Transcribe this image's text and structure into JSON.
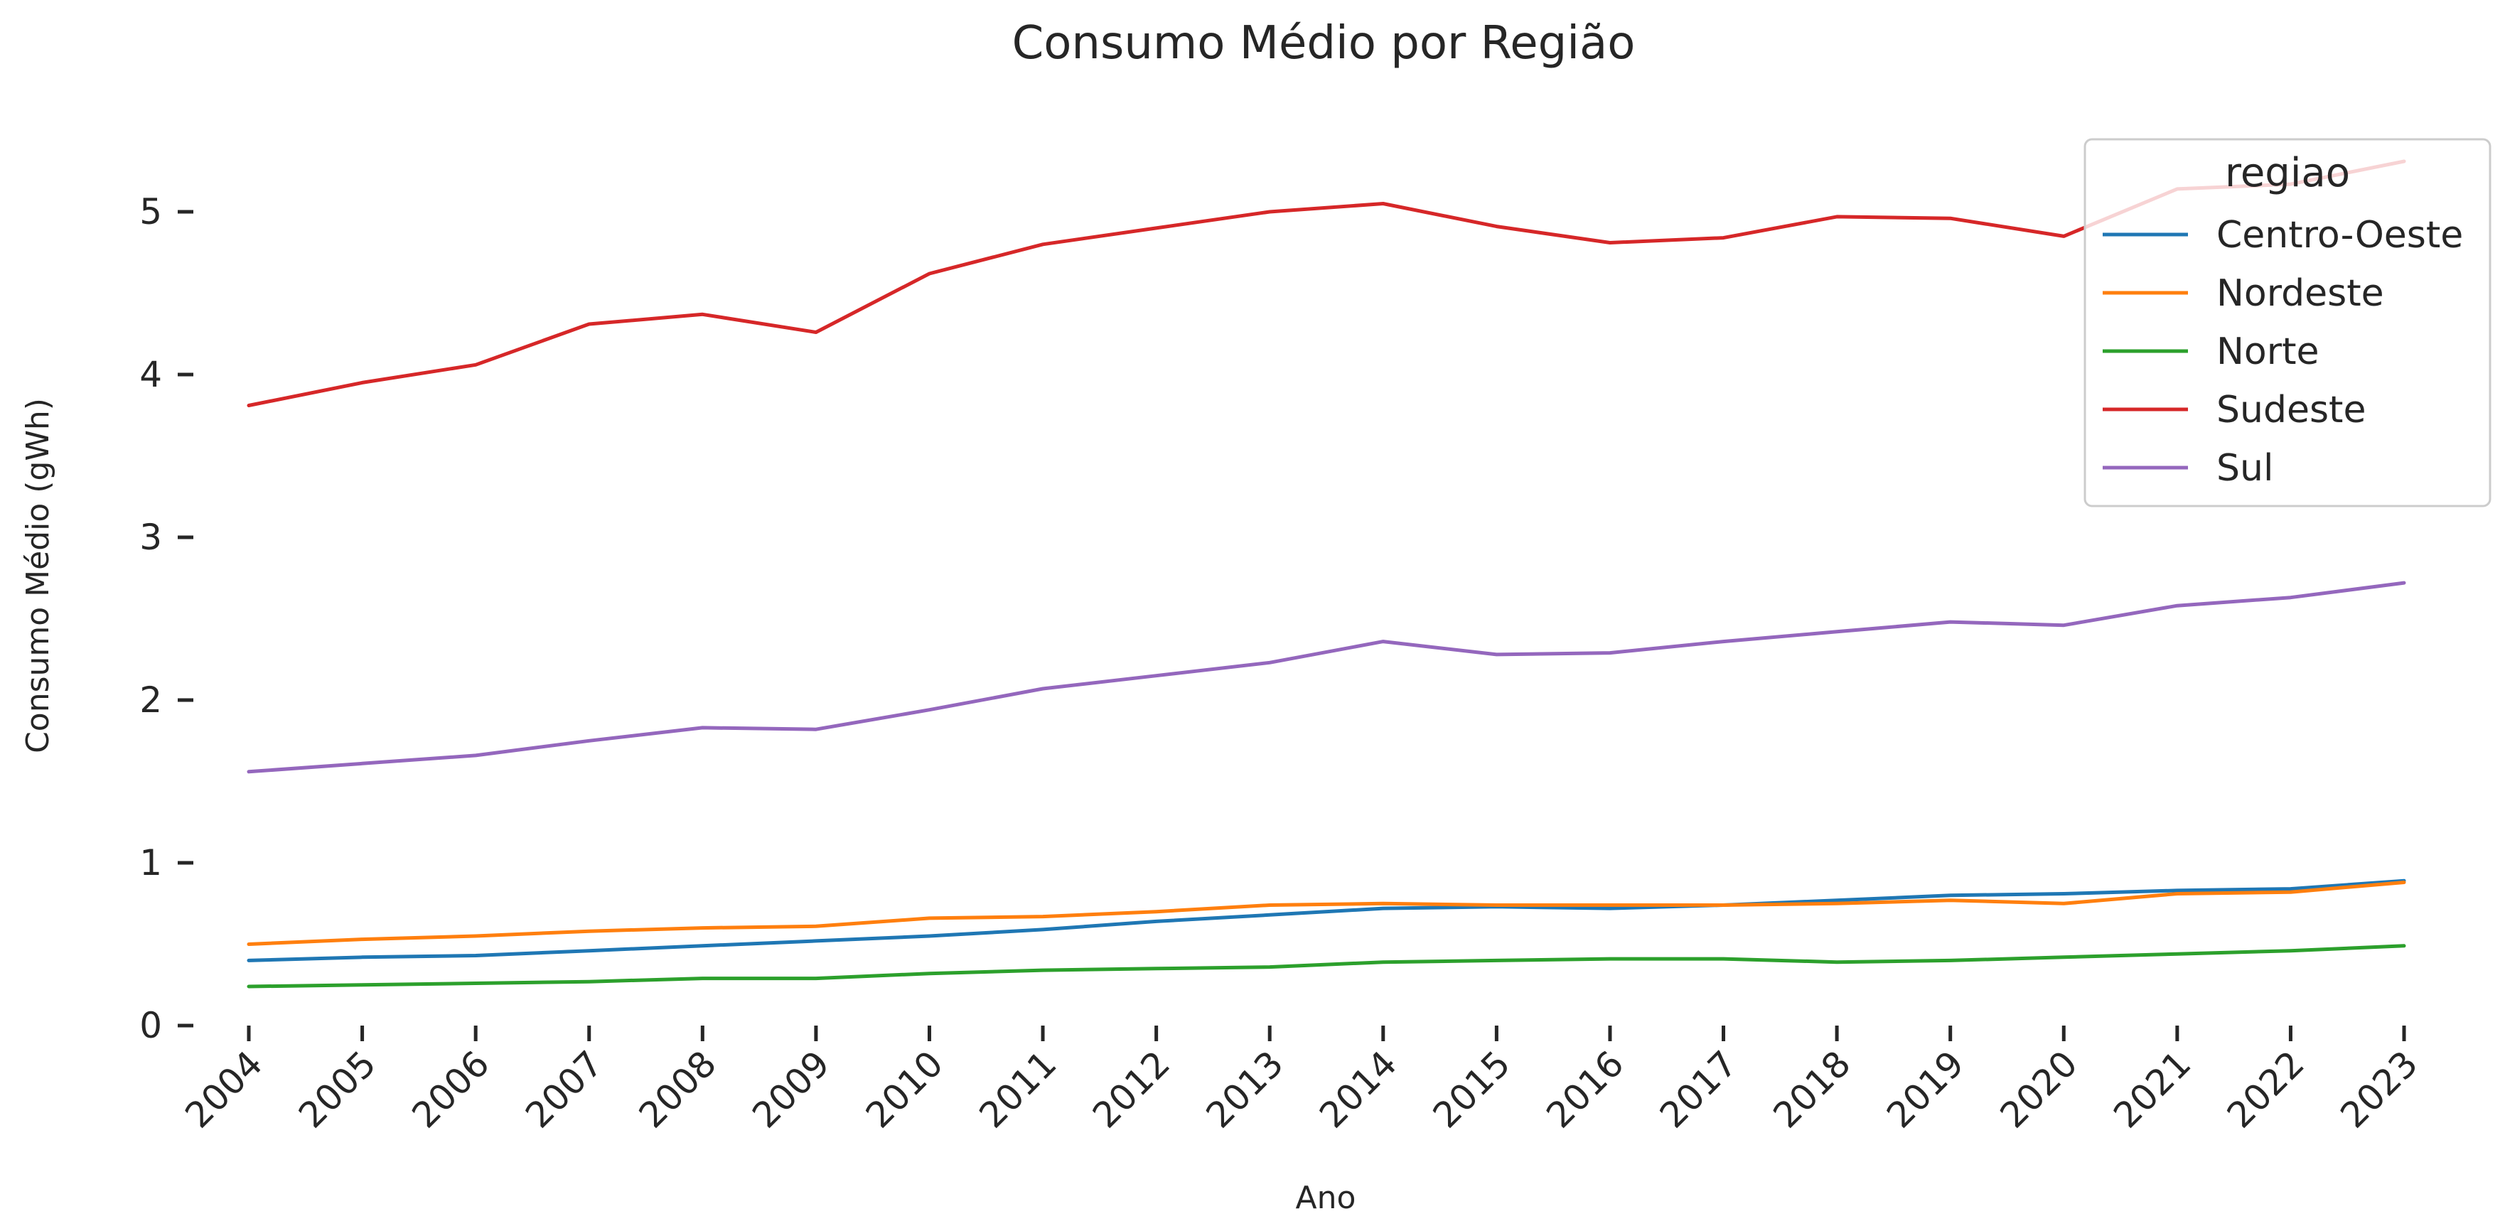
{
  "chart_data": {
    "type": "line",
    "title": "Consumo Médio por Região",
    "xlabel": "Ano",
    "ylabel": "Consumo Médio (gWh)",
    "x": [
      2004,
      2005,
      2006,
      2007,
      2008,
      2009,
      2010,
      2011,
      2012,
      2013,
      2014,
      2015,
      2016,
      2017,
      2018,
      2019,
      2020,
      2021,
      2022,
      2023
    ],
    "yticks": [
      0,
      1,
      2,
      3,
      4,
      5
    ],
    "ylim": [
      0,
      5.5
    ],
    "grid": false,
    "legend": {
      "title": "regiao",
      "position": "top-right"
    },
    "series": [
      {
        "name": "Centro-Oeste",
        "color": "#1f77b4",
        "values": [
          0.4,
          0.42,
          0.43,
          0.46,
          0.49,
          0.52,
          0.55,
          0.59,
          0.64,
          0.68,
          0.72,
          0.73,
          0.72,
          0.74,
          0.77,
          0.8,
          0.81,
          0.83,
          0.84,
          0.89
        ]
      },
      {
        "name": "Nordeste",
        "color": "#ff7f0e",
        "values": [
          0.5,
          0.53,
          0.55,
          0.58,
          0.6,
          0.61,
          0.66,
          0.67,
          0.7,
          0.74,
          0.75,
          0.74,
          0.74,
          0.74,
          0.75,
          0.77,
          0.75,
          0.81,
          0.82,
          0.88
        ]
      },
      {
        "name": "Norte",
        "color": "#2ca02c",
        "values": [
          0.24,
          0.25,
          0.26,
          0.27,
          0.29,
          0.29,
          0.32,
          0.34,
          0.35,
          0.36,
          0.39,
          0.4,
          0.41,
          0.41,
          0.39,
          0.4,
          0.42,
          0.44,
          0.46,
          0.49
        ]
      },
      {
        "name": "Sudeste",
        "color": "#d62728",
        "values": [
          3.81,
          3.95,
          4.06,
          4.31,
          4.37,
          4.26,
          4.62,
          4.8,
          4.9,
          5.0,
          5.05,
          4.91,
          4.81,
          4.84,
          4.97,
          4.96,
          4.85,
          5.14,
          5.17,
          5.31
        ]
      },
      {
        "name": "Sul",
        "color": "#9467bd",
        "values": [
          1.56,
          1.61,
          1.66,
          1.75,
          1.83,
          1.82,
          1.94,
          2.07,
          2.15,
          2.23,
          2.36,
          2.28,
          2.29,
          2.36,
          2.42,
          2.48,
          2.46,
          2.58,
          2.63,
          2.72
        ]
      }
    ]
  }
}
